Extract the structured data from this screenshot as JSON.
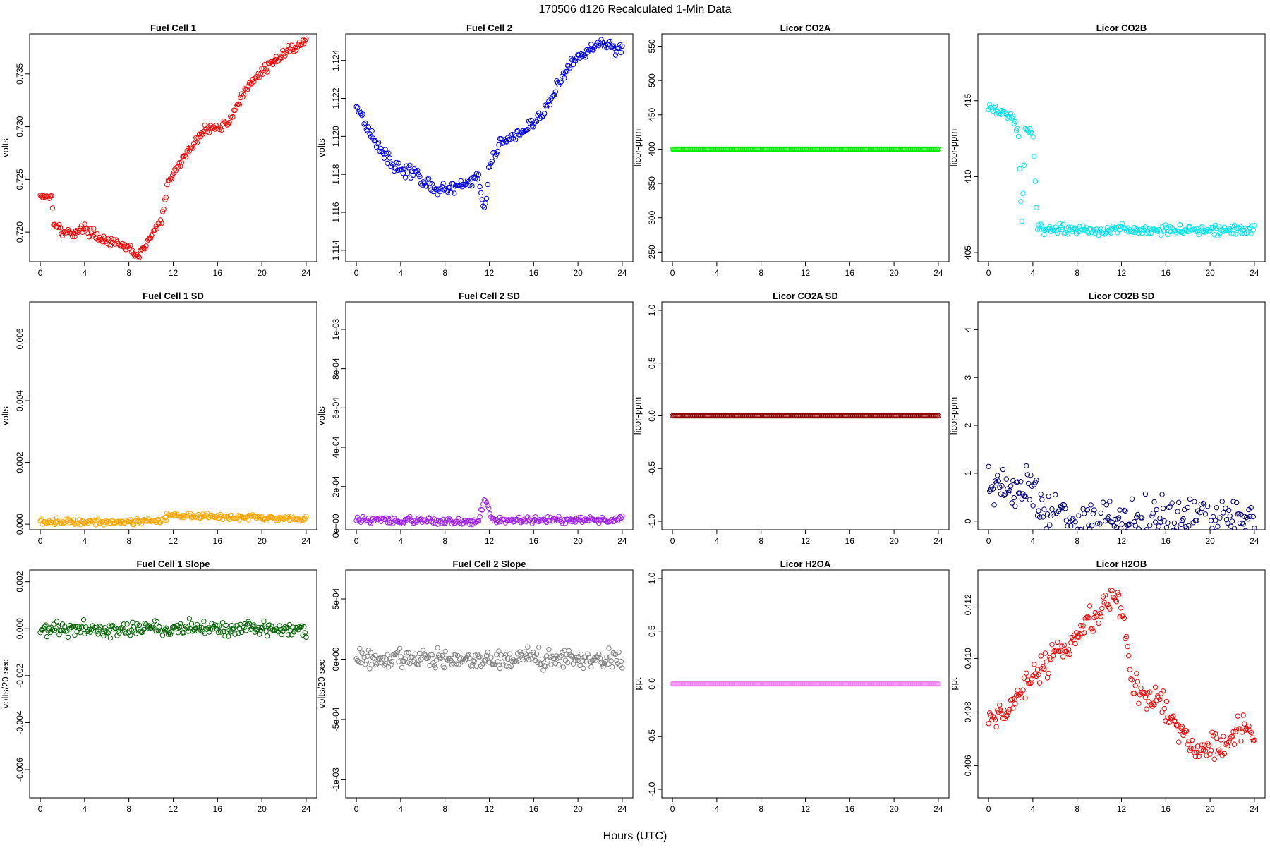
{
  "figure": {
    "title": "170506   d126   Recalculated 1-Min Data",
    "xlabel": "Hours (UTC)"
  },
  "chart_data": [
    {
      "type": "scatter",
      "title": "Fuel Cell 1",
      "ylabel": "volts",
      "color": "#ff0000",
      "xlim": [
        -0.96,
        24.96
      ],
      "ylim": [
        0.7172,
        0.7388
      ],
      "xticks": [
        0,
        4,
        8,
        12,
        16,
        20,
        24
      ],
      "xtick_labels": [
        "0",
        "4",
        "8",
        "12",
        "16",
        "20",
        "24"
      ],
      "yticks": [
        0.72,
        0.725,
        0.73,
        0.735
      ],
      "ytick_labels": [
        "0.720",
        "0.725",
        "0.730",
        "0.735"
      ],
      "anchors": [
        [
          0.0,
          0.7235
        ],
        [
          1.0,
          0.7234
        ],
        [
          1.2,
          0.7211
        ],
        [
          2.0,
          0.72
        ],
        [
          3.0,
          0.7199
        ],
        [
          4.0,
          0.7204
        ],
        [
          5.0,
          0.7197
        ],
        [
          6.0,
          0.7192
        ],
        [
          7.0,
          0.7188
        ],
        [
          8.0,
          0.7185
        ],
        [
          8.9,
          0.7177
        ],
        [
          10.0,
          0.7196
        ],
        [
          11.0,
          0.7213
        ],
        [
          11.5,
          0.7245
        ],
        [
          12.0,
          0.7255
        ],
        [
          13.0,
          0.7272
        ],
        [
          14.0,
          0.7285
        ],
        [
          15.0,
          0.73
        ],
        [
          16.0,
          0.7298
        ],
        [
          17.0,
          0.7305
        ],
        [
          18.0,
          0.7325
        ],
        [
          19.0,
          0.734
        ],
        [
          20.0,
          0.7353
        ],
        [
          21.0,
          0.736
        ],
        [
          22.0,
          0.7371
        ],
        [
          23.0,
          0.7375
        ],
        [
          24.0,
          0.7382
        ]
      ],
      "noise": 0.00025
    },
    {
      "type": "scatter",
      "title": "Fuel Cell 2",
      "ylabel": "volts",
      "color": "#0000ff",
      "xlim": [
        -0.96,
        24.96
      ],
      "ylim": [
        1.1134,
        1.1254
      ],
      "xticks": [
        0,
        4,
        8,
        12,
        16,
        20,
        24
      ],
      "xtick_labels": [
        "0",
        "4",
        "8",
        "12",
        "16",
        "20",
        "24"
      ],
      "yticks": [
        1.114,
        1.116,
        1.118,
        1.12,
        1.122,
        1.124
      ],
      "ytick_labels": [
        "1.114",
        "1.116",
        "1.118",
        "1.120",
        "1.122",
        "1.124"
      ],
      "anchors": [
        [
          0.0,
          1.1217
        ],
        [
          1.0,
          1.1205
        ],
        [
          2.0,
          1.1195
        ],
        [
          3.0,
          1.1187
        ],
        [
          4.0,
          1.1183
        ],
        [
          5.0,
          1.1181
        ],
        [
          6.0,
          1.1177
        ],
        [
          7.0,
          1.1173
        ],
        [
          8.0,
          1.1172
        ],
        [
          9.0,
          1.1172
        ],
        [
          10.0,
          1.1176
        ],
        [
          11.0,
          1.1178
        ],
        [
          11.6,
          1.116
        ],
        [
          12.0,
          1.1185
        ],
        [
          12.5,
          1.1193
        ],
        [
          13.0,
          1.1197
        ],
        [
          14.0,
          1.1199
        ],
        [
          15.0,
          1.1203
        ],
        [
          16.0,
          1.1207
        ],
        [
          17.0,
          1.1213
        ],
        [
          18.0,
          1.1225
        ],
        [
          19.0,
          1.1235
        ],
        [
          20.0,
          1.1242
        ],
        [
          21.0,
          1.1245
        ],
        [
          22.0,
          1.125
        ],
        [
          23.0,
          1.1247
        ],
        [
          24.0,
          1.1246
        ]
      ],
      "noise": 0.0002
    },
    {
      "type": "scatter",
      "title": "Licor CO2A",
      "ylabel": "licor-ppm",
      "color": "#00ee00",
      "xlim": [
        -0.96,
        24.96
      ],
      "ylim": [
        236,
        568
      ],
      "xticks": [
        0,
        4,
        8,
        12,
        16,
        20,
        24
      ],
      "xtick_labels": [
        "0",
        "4",
        "8",
        "12",
        "16",
        "20",
        "24"
      ],
      "yticks": [
        250,
        300,
        350,
        400,
        450,
        500,
        550
      ],
      "ytick_labels": [
        "250",
        "300",
        "350",
        "400",
        "450",
        "500",
        "550"
      ],
      "anchors": [
        [
          0.0,
          400
        ],
        [
          24.0,
          400
        ]
      ],
      "noise": 0
    },
    {
      "type": "scatter",
      "title": "Licor CO2B",
      "ylabel": "licor-ppm",
      "color": "#00e5ee",
      "xlim": [
        -0.96,
        24.96
      ],
      "ylim": [
        404.4,
        419.4
      ],
      "xticks": [
        0,
        4,
        8,
        12,
        16,
        20,
        24
      ],
      "xtick_labels": [
        "0",
        "4",
        "8",
        "12",
        "16",
        "20",
        "24"
      ],
      "yticks": [
        405,
        410,
        415
      ],
      "ytick_labels": [
        "405",
        "410",
        "415"
      ],
      "anchors": [
        [
          0.0,
          414.5
        ],
        [
          1.0,
          414.3
        ],
        [
          2.0,
          414.0
        ],
        [
          2.7,
          413.0
        ],
        [
          3.0,
          406.5
        ],
        [
          3.3,
          413.0
        ],
        [
          4.0,
          413.0
        ],
        [
          4.4,
          406.5
        ],
        [
          24.0,
          406.5
        ]
      ],
      "noise": 0.2
    },
    {
      "type": "scatter",
      "title": "Fuel Cell 1 SD",
      "ylabel": "volts",
      "color": "#ffa500",
      "xlim": [
        -0.96,
        24.96
      ],
      "ylim": [
        -0.00018,
        0.0072
      ],
      "xticks": [
        0,
        4,
        8,
        12,
        16,
        20,
        24
      ],
      "xtick_labels": [
        "0",
        "4",
        "8",
        "12",
        "16",
        "20",
        "24"
      ],
      "yticks": [
        0.0,
        0.002,
        0.004,
        0.006
      ],
      "ytick_labels": [
        "0.000",
        "0.002",
        "0.004",
        "0.006"
      ],
      "anchors": [
        [
          0.0,
          8e-05
        ],
        [
          11.0,
          0.0001
        ],
        [
          11.5,
          0.0003
        ],
        [
          16.0,
          0.00025
        ],
        [
          24.0,
          0.00015
        ]
      ],
      "noise": 6e-05
    },
    {
      "type": "scatter",
      "title": "Fuel Cell 2 SD",
      "ylabel": "volts",
      "color": "#a020f0",
      "xlim": [
        -0.96,
        24.96
      ],
      "ylim": [
        -2e-05,
        0.00114
      ],
      "xticks": [
        0,
        4,
        8,
        12,
        16,
        20,
        24
      ],
      "xtick_labels": [
        "0",
        "4",
        "8",
        "12",
        "16",
        "20",
        "24"
      ],
      "yticks": [
        0,
        0.0002,
        0.0004,
        0.0006,
        0.0008,
        0.001
      ],
      "ytick_labels": [
        "0e+00",
        "2e-04",
        "4e-04",
        "6e-04",
        "8e-04",
        "1e-03"
      ],
      "anchors": [
        [
          0.0,
          3e-05
        ],
        [
          11.0,
          2e-05
        ],
        [
          11.6,
          0.00015
        ],
        [
          12.2,
          3e-05
        ],
        [
          24.0,
          3e-05
        ]
      ],
      "noise": 1e-05
    },
    {
      "type": "scatter",
      "title": "Licor CO2A SD",
      "ylabel": "licor-ppm",
      "color": "#8b0000",
      "xlim": [
        -0.96,
        24.96
      ],
      "ylim": [
        -1.08,
        1.08
      ],
      "xticks": [
        0,
        4,
        8,
        12,
        16,
        20,
        24
      ],
      "xtick_labels": [
        "0",
        "4",
        "8",
        "12",
        "16",
        "20",
        "24"
      ],
      "yticks": [
        -1.0,
        -0.5,
        0.0,
        0.5,
        1.0
      ],
      "ytick_labels": [
        "-1.0",
        "-0.5",
        "0.0",
        "0.5",
        "1.0"
      ],
      "anchors": [
        [
          0.0,
          0.0
        ],
        [
          24.0,
          0.0
        ]
      ],
      "noise": 0
    },
    {
      "type": "scatter",
      "title": "Licor CO2B SD",
      "ylabel": "licor-ppm",
      "color": "#000080",
      "xlim": [
        -0.96,
        24.96
      ],
      "ylim": [
        -0.18,
        4.58
      ],
      "xticks": [
        0,
        4,
        8,
        12,
        16,
        20,
        24
      ],
      "xtick_labels": [
        "0",
        "4",
        "8",
        "12",
        "16",
        "20",
        "24"
      ],
      "yticks": [
        0,
        1,
        2,
        3,
        4
      ],
      "ytick_labels": [
        "0",
        "1",
        "2",
        "3",
        "4"
      ],
      "anchors": [
        [
          0.0,
          0.7
        ],
        [
          4.3,
          0.6
        ],
        [
          4.5,
          0.01
        ],
        [
          24.0,
          0.01
        ]
      ],
      "noise": 0.3
    },
    {
      "type": "scatter",
      "title": "Fuel Cell 1 Slope",
      "ylabel": "volts/20-sec",
      "color": "#006400",
      "xlim": [
        -0.96,
        24.96
      ],
      "ylim": [
        -0.0072,
        0.0025
      ],
      "xticks": [
        0,
        4,
        8,
        12,
        16,
        20,
        24
      ],
      "xtick_labels": [
        "0",
        "4",
        "8",
        "12",
        "16",
        "20",
        "24"
      ],
      "yticks": [
        -0.006,
        -0.004,
        -0.002,
        0.0,
        0.002
      ],
      "ytick_labels": [
        "-0.006",
        "-0.004",
        "-0.002",
        "0.000",
        "0.002"
      ],
      "anchors": [
        [
          0.0,
          0.0
        ],
        [
          24.0,
          0.0
        ]
      ],
      "noise": 0.0002
    },
    {
      "type": "scatter",
      "title": "Fuel Cell 2 Slope",
      "ylabel": "volts/20-sec",
      "color": "#808080",
      "xlim": [
        -0.96,
        24.96
      ],
      "ylim": [
        -0.00115,
        0.00074
      ],
      "xticks": [
        0,
        4,
        8,
        12,
        16,
        20,
        24
      ],
      "xtick_labels": [
        "0",
        "4",
        "8",
        "12",
        "16",
        "20",
        "24"
      ],
      "yticks": [
        -0.001,
        -0.0005,
        0,
        0.0005
      ],
      "ytick_labels": [
        "-1e-03",
        "-5e-04",
        "0e+00",
        "5e-04"
      ],
      "anchors": [
        [
          0.0,
          0.0
        ],
        [
          24.0,
          0.0
        ]
      ],
      "noise": 5e-05
    },
    {
      "type": "scatter",
      "title": "Licor H2OA",
      "ylabel": "ppt",
      "color": "#ee82ee",
      "xlim": [
        -0.96,
        24.96
      ],
      "ylim": [
        -1.08,
        1.08
      ],
      "xticks": [
        0,
        4,
        8,
        12,
        16,
        20,
        24
      ],
      "xtick_labels": [
        "0",
        "4",
        "8",
        "12",
        "16",
        "20",
        "24"
      ],
      "yticks": [
        -1.0,
        -0.5,
        0.0,
        0.5,
        1.0
      ],
      "ytick_labels": [
        "-1.0",
        "-0.5",
        "0.0",
        "0.5",
        "1.0"
      ],
      "anchors": [
        [
          0.0,
          0.0
        ],
        [
          24.0,
          0.0
        ]
      ],
      "noise": 0
    },
    {
      "type": "scatter",
      "title": "Licor H2OB",
      "ylabel": "ppt",
      "color": "#ff0000",
      "xlim": [
        -0.96,
        24.96
      ],
      "ylim": [
        0.4048,
        0.4133
      ],
      "xticks": [
        0,
        4,
        8,
        12,
        16,
        20,
        24
      ],
      "xtick_labels": [
        "0",
        "4",
        "8",
        "12",
        "16",
        "20",
        "24"
      ],
      "yticks": [
        0.406,
        0.408,
        0.41,
        0.412
      ],
      "ytick_labels": [
        "0.406",
        "0.408",
        "0.410",
        "0.412"
      ],
      "anchors": [
        [
          0.0,
          0.4075
        ],
        [
          1.0,
          0.408
        ],
        [
          2.0,
          0.408
        ],
        [
          3.0,
          0.4088
        ],
        [
          4.0,
          0.4093
        ],
        [
          5.0,
          0.4096
        ],
        [
          6.0,
          0.4104
        ],
        [
          7.0,
          0.4104
        ],
        [
          8.0,
          0.4108
        ],
        [
          9.0,
          0.4114
        ],
        [
          10.0,
          0.4117
        ],
        [
          11.0,
          0.4123
        ],
        [
          12.0,
          0.412
        ],
        [
          13.0,
          0.409
        ],
        [
          14.0,
          0.4087
        ],
        [
          15.0,
          0.4085
        ],
        [
          16.0,
          0.408
        ],
        [
          17.0,
          0.4075
        ],
        [
          18.0,
          0.407
        ],
        [
          19.0,
          0.4065
        ],
        [
          20.0,
          0.4068
        ],
        [
          21.0,
          0.4065
        ],
        [
          22.0,
          0.407
        ],
        [
          23.0,
          0.4075
        ],
        [
          24.0,
          0.4072
        ]
      ],
      "noise": 0.0003
    }
  ]
}
